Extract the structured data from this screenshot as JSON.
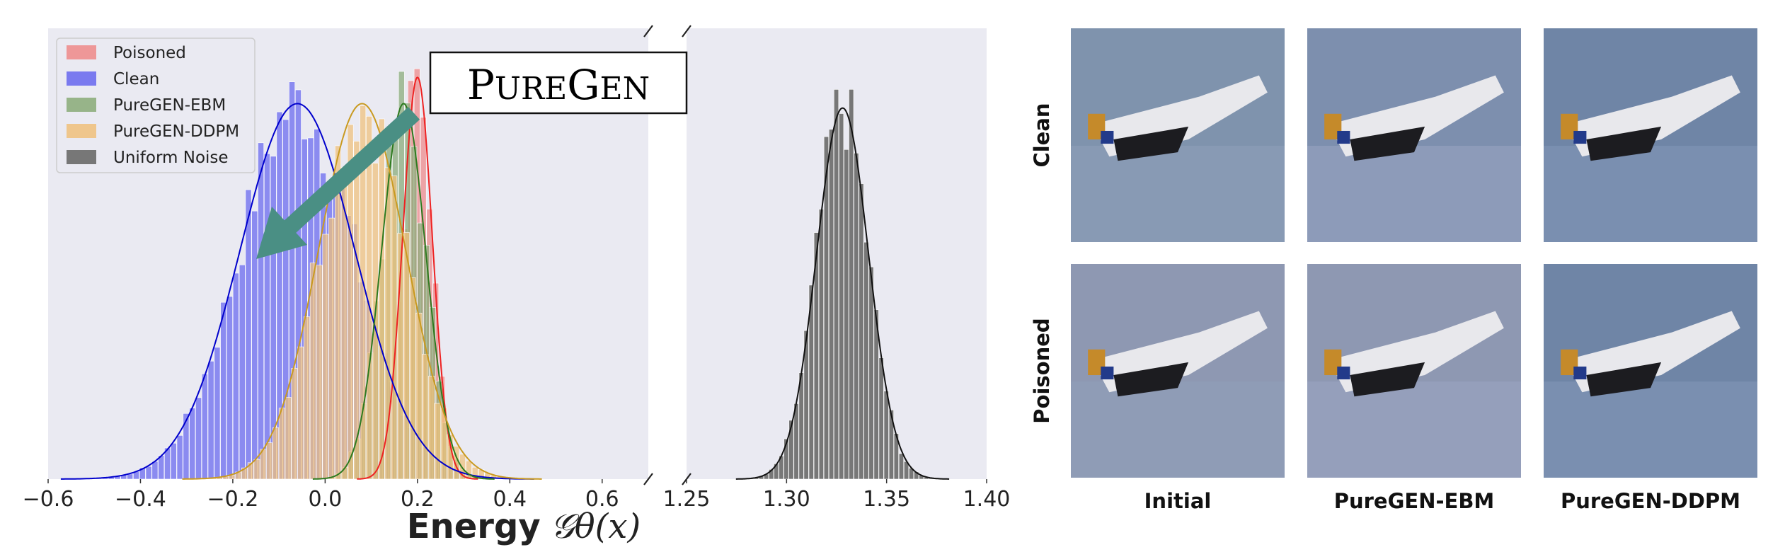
{
  "chart_data": {
    "type": "bar",
    "title": "",
    "xlabel": "Energy",
    "xlabel_math": "𝒢θ(x)",
    "ylabel": "",
    "xlim_left": [
      -0.6,
      0.7
    ],
    "xlim_right": [
      1.25,
      1.4
    ],
    "xticks_left": [
      "−0.6",
      "−0.4",
      "−0.2",
      "0.0",
      "0.2",
      "0.4",
      "0.6"
    ],
    "xticks_left_values": [
      -0.6,
      -0.4,
      -0.2,
      0.0,
      0.2,
      0.4,
      0.6
    ],
    "xticks_right": [
      "1.25",
      "1.30",
      "1.35",
      "1.40"
    ],
    "xticks_right_values": [
      1.25,
      1.3,
      1.35,
      1.4
    ],
    "legend_position": "upper-left",
    "grid": false,
    "broken_axis": true,
    "series": [
      {
        "name": "Poisoned",
        "color": "#ee8888",
        "line_color": "#ee2222",
        "mean": 0.2,
        "sd": 0.032,
        "peak": 0.92,
        "panel": "left"
      },
      {
        "name": "Clean",
        "color": "#6666ee",
        "line_color": "#0000cc",
        "mean": -0.06,
        "sd": 0.125,
        "peak": 0.86,
        "panel": "left"
      },
      {
        "name": "PureGEN-EBM",
        "color": "#88aa77",
        "line_color": "#2d7a1f",
        "mean": 0.17,
        "sd": 0.048,
        "peak": 0.86,
        "panel": "left"
      },
      {
        "name": "PureGEN-DDPM",
        "color": "#f0c07a",
        "line_color": "#c99a20",
        "mean": 0.08,
        "sd": 0.095,
        "peak": 0.86,
        "panel": "left"
      },
      {
        "name": "Uniform Noise",
        "color": "#777777",
        "line_color": "#111111",
        "mean": 1.328,
        "sd": 0.013,
        "peak": 0.85,
        "panel": "right"
      }
    ],
    "annotation": {
      "label_part1": "P",
      "label_part2": "URE",
      "label_part3": "G",
      "label_part4": "EN"
    }
  },
  "image_grid": {
    "row_labels": [
      "Clean",
      "Poisoned"
    ],
    "col_labels": [
      "Initial",
      "PureGEN-EBM",
      "PureGEN-DDPM"
    ]
  },
  "colors": {
    "panel_bg": "#eaeaf2",
    "arrow": "#4a8f84"
  }
}
